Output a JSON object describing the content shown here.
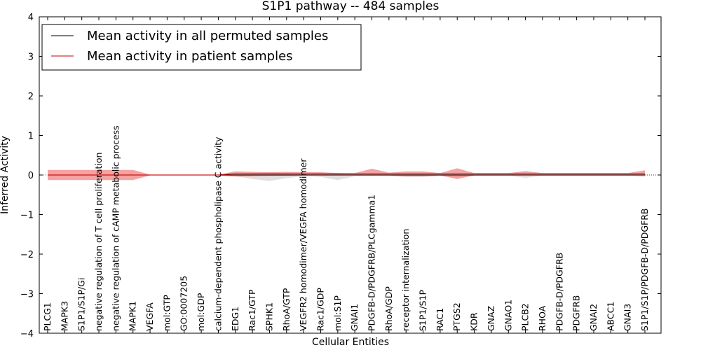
{
  "chart_data": {
    "type": "line",
    "title": "S1P1 pathway -- 484 samples",
    "xlabel": "Cellular Entities",
    "ylabel": "Inferred Activity",
    "ylim": [
      -4,
      4
    ],
    "yticks": [
      -4,
      -3,
      -2,
      -1,
      0,
      1,
      2,
      3,
      4
    ],
    "ytick_labels": [
      "−4",
      "−3",
      "−2",
      "−1",
      "0",
      "1",
      "2",
      "3",
      "4"
    ],
    "legend_position": "top-left",
    "categories": [
      "PLCG1",
      "MAPK3",
      "S1P1/S1P/Gi",
      "negative regulation of T cell proliferation",
      "negative regulation of cAMP metabolic process",
      "MAPK1",
      "VEGFA",
      "mol:GTP",
      "GO:0007205",
      "mol:GDP",
      "calcium-dependent phospholipase C activity",
      "EDG1",
      "Rac1/GTP",
      "SPHK1",
      "RhoA/GTP",
      "VEGFR2 homodimer/VEGFA homodimer",
      "Rac1/GDP",
      "mol:S1P",
      "GNAI1",
      "PDGFB-D/PDGFRB/PLCgamma1",
      "RhoA/GDP",
      "receptor internalization",
      "S1P1/S1P",
      "RAC1",
      "PTGS2",
      "KDR",
      "GNAZ",
      "GNAO1",
      "PLCB2",
      "RHOA",
      "PDGFB-D/PDGFRB",
      "PDGFRB",
      "GNAI2",
      "ABCC1",
      "GNAI3",
      "S1P1/S1P/PDGFB-D/PDGFRB"
    ],
    "series": [
      {
        "name": "Mean activity in all permuted samples",
        "color": "#000000",
        "values": [
          0,
          0,
          0,
          0,
          0,
          0,
          0,
          0,
          0,
          0,
          0,
          0,
          0,
          0,
          0,
          0,
          0,
          0,
          0,
          0,
          0,
          0,
          0,
          0,
          0,
          0,
          0,
          0,
          0,
          0,
          0,
          0,
          0,
          0,
          0,
          0
        ],
        "band_color": "#bbbbbb",
        "upper": [
          0.02,
          0.02,
          0.02,
          0.02,
          0.02,
          0.02,
          0.01,
          0.01,
          0.01,
          0.01,
          0.01,
          0.02,
          0.05,
          0.06,
          0.05,
          0.03,
          0.04,
          0.06,
          0.02,
          0.02,
          0.02,
          0.02,
          0.02,
          0.02,
          0.03,
          0.02,
          0.02,
          0.02,
          0.02,
          0.02,
          0.02,
          0.02,
          0.02,
          0.02,
          0.02,
          0.02
        ],
        "lower": [
          -0.02,
          -0.02,
          -0.02,
          -0.02,
          -0.02,
          -0.02,
          -0.01,
          -0.01,
          -0.01,
          -0.01,
          -0.01,
          -0.03,
          -0.1,
          -0.15,
          -0.08,
          -0.03,
          -0.05,
          -0.13,
          -0.03,
          -0.03,
          -0.03,
          -0.05,
          -0.05,
          -0.03,
          -0.05,
          -0.02,
          -0.02,
          -0.02,
          -0.07,
          -0.02,
          -0.02,
          -0.02,
          -0.02,
          -0.02,
          -0.02,
          -0.05
        ]
      },
      {
        "name": "Mean activity in patient samples",
        "color": "#cc0000",
        "values": [
          0,
          0,
          0,
          0,
          0,
          0,
          0,
          0,
          0,
          0,
          0,
          0.03,
          0.03,
          0.03,
          0.03,
          0.03,
          0.03,
          0.03,
          0.03,
          0.03,
          0.03,
          0.03,
          0.03,
          0.03,
          0.03,
          0.03,
          0.03,
          0.03,
          0.03,
          0.03,
          0.03,
          0.03,
          0.03,
          0.03,
          0.03,
          0.03
        ],
        "band_color": "#ee5555",
        "upper": [
          0.13,
          0.13,
          0.13,
          0.13,
          0.13,
          0.13,
          0.01,
          0.01,
          0.01,
          0.01,
          0.01,
          0.09,
          0.08,
          0.07,
          0.08,
          0.07,
          0.07,
          0.05,
          0.05,
          0.16,
          0.06,
          0.09,
          0.09,
          0.05,
          0.17,
          0.05,
          0.05,
          0.05,
          0.1,
          0.05,
          0.05,
          0.05,
          0.05,
          0.05,
          0.05,
          0.12
        ],
        "lower": [
          -0.13,
          -0.13,
          -0.13,
          -0.13,
          -0.13,
          -0.13,
          -0.01,
          -0.01,
          -0.01,
          -0.01,
          -0.01,
          -0.04,
          -0.03,
          -0.02,
          -0.02,
          -0.01,
          -0.01,
          -0.01,
          -0.01,
          -0.01,
          -0.01,
          -0.03,
          -0.03,
          -0.01,
          -0.1,
          -0.01,
          -0.01,
          -0.01,
          -0.01,
          -0.01,
          -0.01,
          -0.01,
          -0.01,
          -0.01,
          -0.01,
          -0.01
        ]
      }
    ]
  }
}
